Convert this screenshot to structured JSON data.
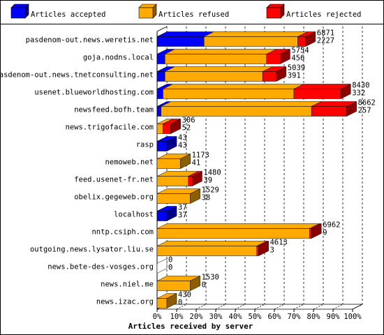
{
  "chart_data": {
    "type": "bar",
    "orientation": "horizontal",
    "stacked": true,
    "three_d": true,
    "xlabel": "Articles received by server",
    "xlim": [
      0,
      100
    ],
    "x_unit": "%",
    "x_ticks": [
      "0%",
      "10%",
      "20%",
      "30%",
      "40%",
      "50%",
      "60%",
      "70%",
      "80%",
      "90%",
      "100%"
    ],
    "grid": "vertical dashed",
    "legend_position": "top",
    "series": [
      {
        "name": "Articles accepted",
        "color": "#0000ff"
      },
      {
        "name": "Articles refused",
        "color": "#ffaa00"
      },
      {
        "name": "Articles rejected",
        "color": "#ff0000"
      }
    ],
    "categories": [
      "pasdenom-out.news.weretis.net",
      "goja.nodns.local",
      "pasdenom-out.news.tnetconsulting.net",
      "usenet.blueworldhosting.com",
      "newsfeed.bofh.team",
      "news.trigofacile.com",
      "rasp",
      "nemoweb.net",
      "feed.usenet-fr.net",
      "obelix.gegeweb.org",
      "localhost",
      "nntp.csiph.com",
      "outgoing.news.lysator.liu.se",
      "news.bete-des-vosges.org",
      "news.niel.me",
      "news.izac.org"
    ],
    "values_percent": {
      "accepted": [
        24,
        4,
        4,
        3,
        2,
        0,
        5,
        0,
        0,
        0,
        5,
        0,
        0,
        0,
        0,
        0
      ],
      "refused": [
        48,
        52,
        50,
        67,
        77,
        3,
        0,
        12,
        16,
        17,
        0,
        78,
        51,
        0,
        17,
        5
      ],
      "rejected": [
        4,
        7,
        7,
        24,
        18,
        4,
        0,
        0,
        2,
        0,
        0,
        1,
        1,
        0,
        0,
        0
      ]
    },
    "value_labels": [
      [
        "6871",
        "2227"
      ],
      [
        "5754",
        "456"
      ],
      [
        "5039",
        "391"
      ],
      [
        "8430",
        "332"
      ],
      [
        "8662",
        "257"
      ],
      [
        "306",
        "52"
      ],
      [
        "43",
        "43"
      ],
      [
        "1173",
        "41"
      ],
      [
        "1480",
        "39"
      ],
      [
        "1529",
        "38"
      ],
      [
        "37",
        "37"
      ],
      [
        "6962",
        "9"
      ],
      [
        "4613",
        "3"
      ],
      [
        "0",
        "0"
      ],
      [
        "1530",
        "0"
      ],
      [
        "430",
        "0"
      ]
    ]
  }
}
